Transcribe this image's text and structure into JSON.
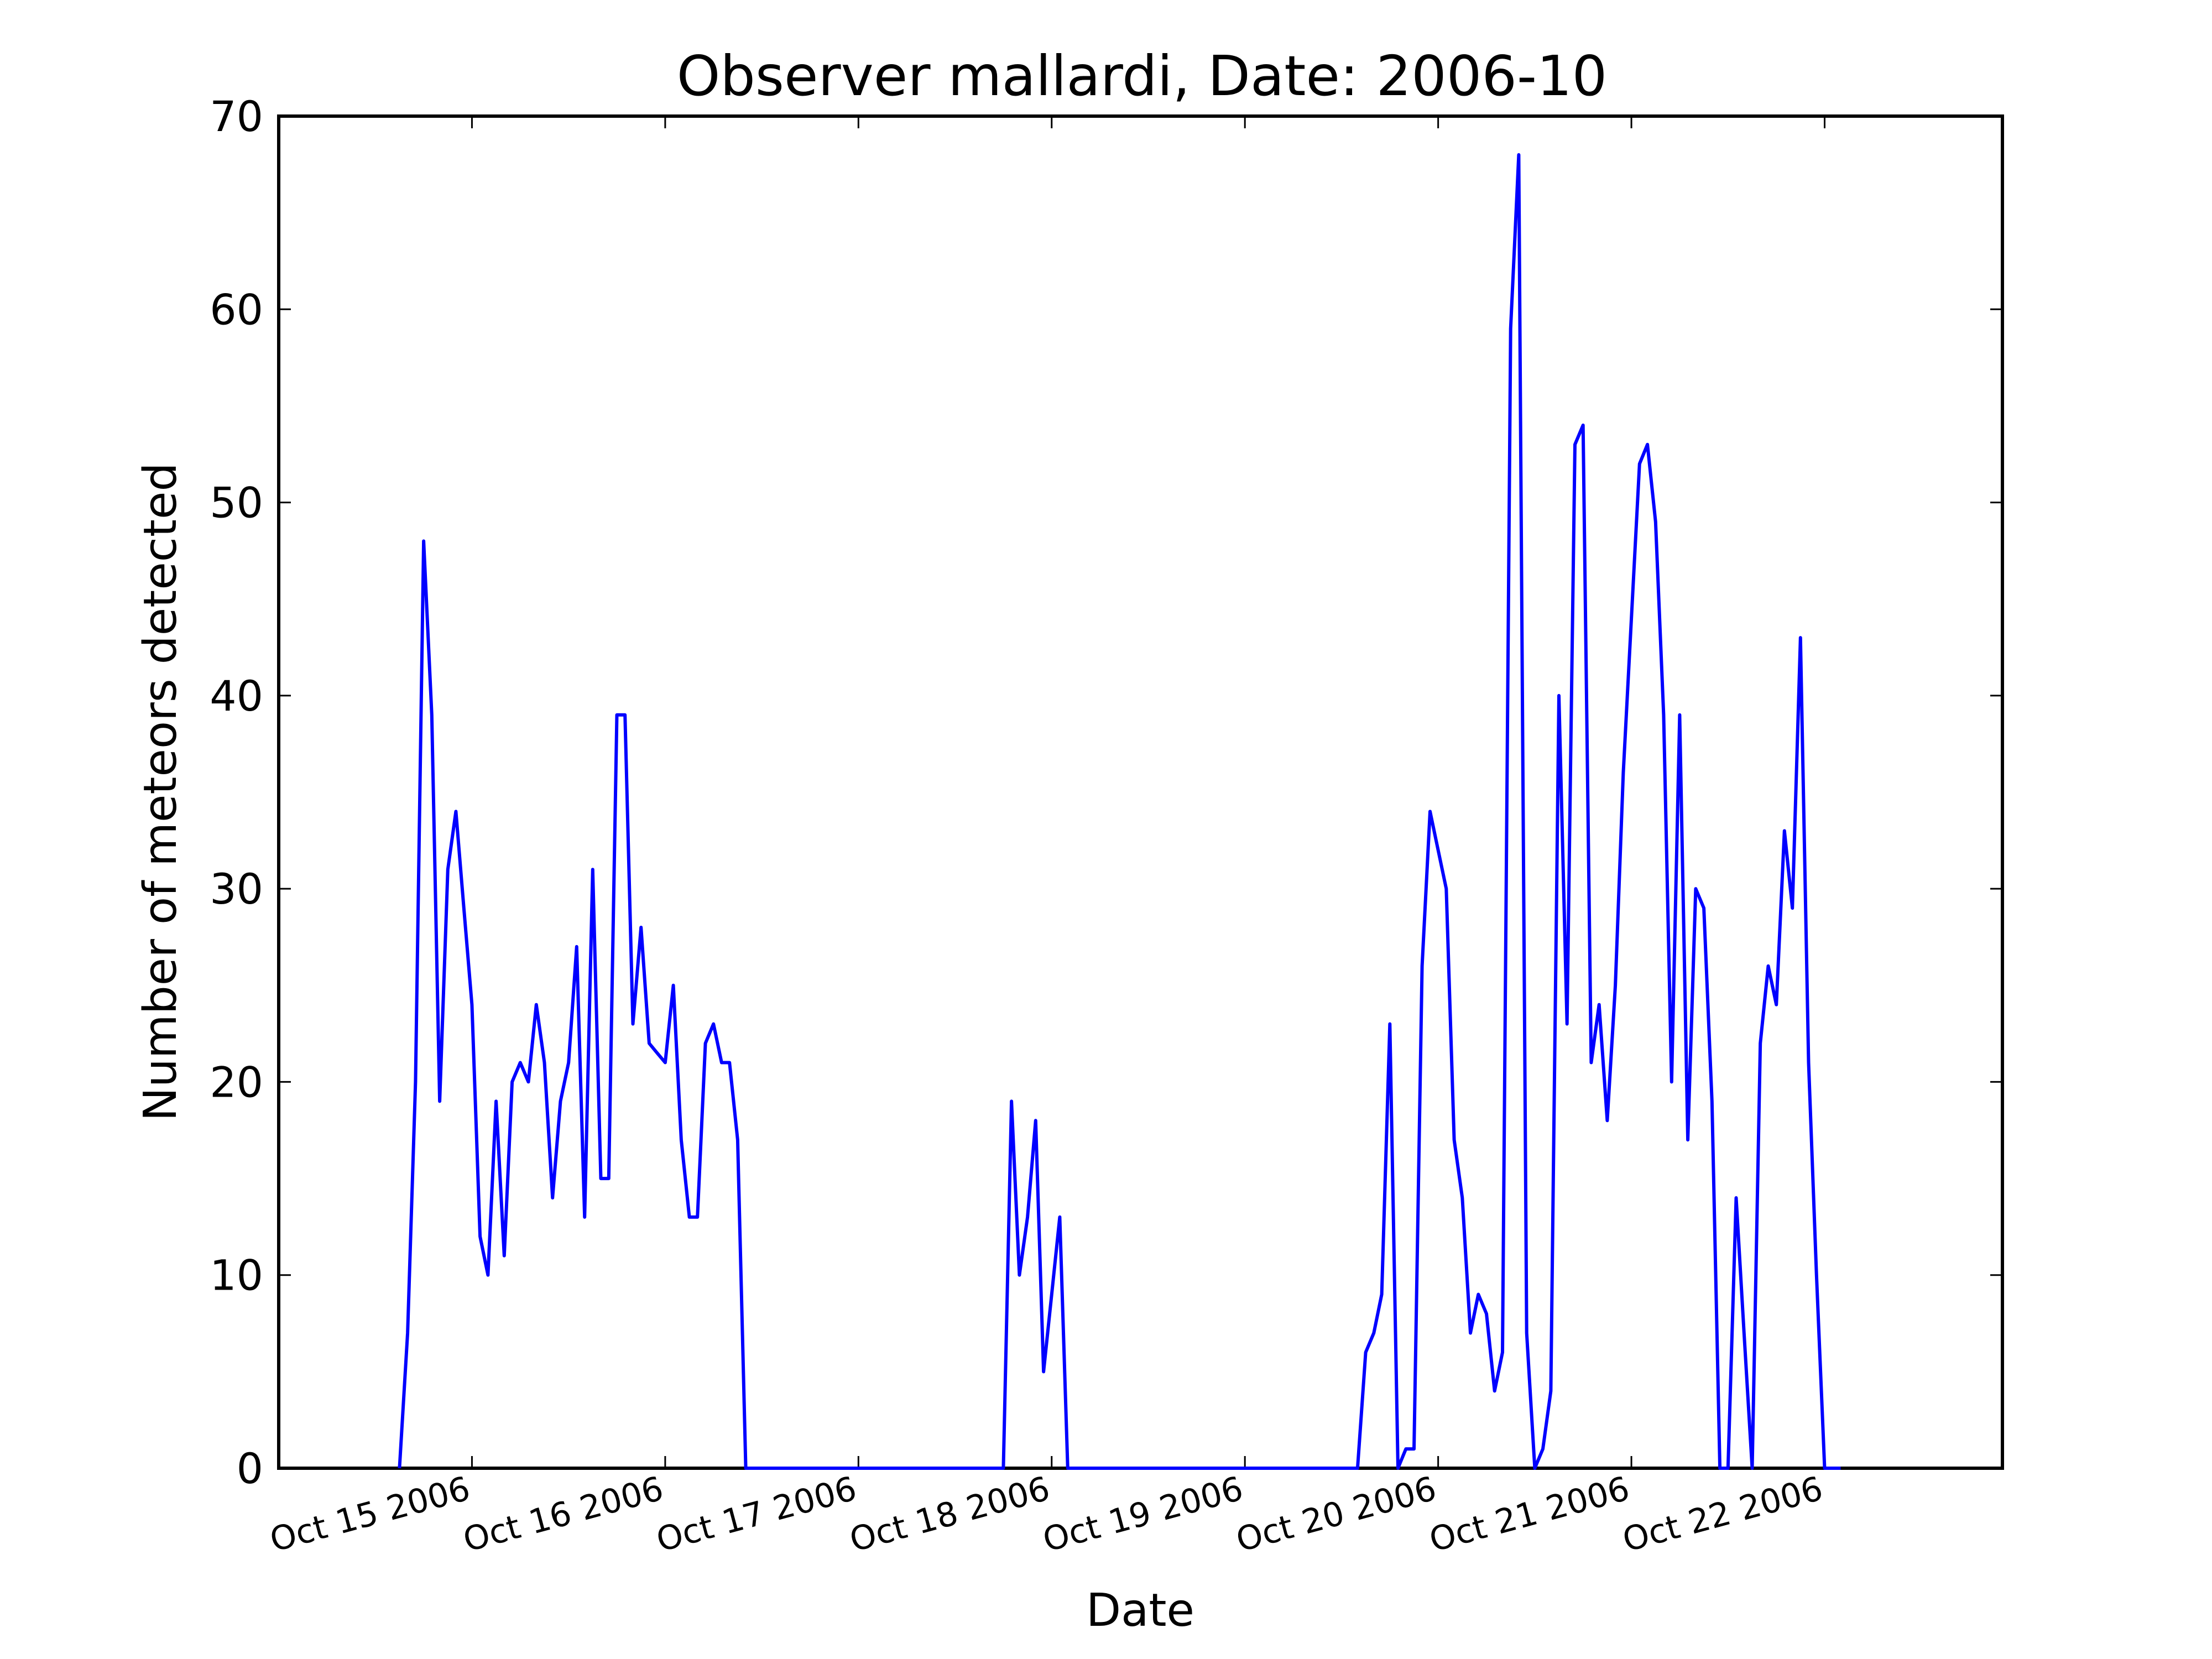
{
  "chart_data": {
    "type": "line",
    "title": "Observer mallardi, Date: 2006-10",
    "xlabel": "Date",
    "ylabel": "Number of meteors detected",
    "x_unit": "days (Oct 2006, fractional)",
    "xlim": [
      14.0,
      22.92
    ],
    "ylim": [
      0,
      70
    ],
    "yticks": [
      0,
      10,
      20,
      30,
      40,
      50,
      60,
      70
    ],
    "ytick_labels": [
      "0",
      "10",
      "20",
      "30",
      "40",
      "50",
      "60",
      "70"
    ],
    "xticks": [
      15,
      16,
      17,
      18,
      19,
      20,
      21,
      22
    ],
    "xtick_labels": [
      "Oct 15 2006",
      "Oct 16 2006",
      "Oct 17 2006",
      "Oct 18 2006",
      "Oct 19 2006",
      "Oct 20 2006",
      "Oct 21 2006",
      "Oct 22 2006"
    ],
    "grid": false,
    "colors": {
      "series": "#0000ff",
      "axes": "#000000",
      "background": "#ffffff"
    },
    "series": [
      {
        "color": "#0000ff",
        "x": [
          14.625,
          14.667,
          14.708,
          14.75,
          14.792,
          14.833,
          14.875,
          14.917,
          14.958,
          15.0,
          15.042,
          15.083,
          15.125,
          15.167,
          15.208,
          15.25,
          15.292,
          15.333,
          15.375,
          15.417,
          15.458,
          15.5,
          15.542,
          15.583,
          15.625,
          15.667,
          15.708,
          15.75,
          15.792,
          15.833,
          15.875,
          15.917,
          15.958,
          16.0,
          16.042,
          16.083,
          16.125,
          16.167,
          16.208,
          16.25,
          16.292,
          16.333,
          16.375,
          16.417,
          16.458,
          16.5,
          17.75,
          17.792,
          17.833,
          17.875,
          17.917,
          17.958,
          18.0,
          18.042,
          18.083,
          19.583,
          19.625,
          19.667,
          19.708,
          19.75,
          19.792,
          19.833,
          19.875,
          19.917,
          19.958,
          20.0,
          20.042,
          20.083,
          20.125,
          20.167,
          20.208,
          20.25,
          20.292,
          20.333,
          20.375,
          20.417,
          20.458,
          20.5,
          20.542,
          20.583,
          20.625,
          20.667,
          20.708,
          20.75,
          20.792,
          20.833,
          20.875,
          20.917,
          20.958,
          21.0,
          21.042,
          21.083,
          21.125,
          21.167,
          21.208,
          21.25,
          21.292,
          21.333,
          21.375,
          21.417,
          21.458,
          21.5,
          21.542,
          21.583,
          21.625,
          21.667,
          21.708,
          21.75,
          21.792,
          21.833,
          21.875,
          21.917,
          21.958,
          22.0,
          22.042,
          22.083
        ],
        "y": [
          0,
          7,
          20,
          48,
          39,
          19,
          31,
          34,
          29,
          24,
          12,
          10,
          19,
          11,
          20,
          21,
          20,
          24,
          21,
          14,
          19,
          21,
          27,
          13,
          31,
          15,
          15,
          39,
          39,
          23,
          28,
          22,
          21.5,
          21,
          25,
          17,
          13,
          13,
          22,
          23,
          21,
          21,
          17,
          0,
          0,
          0,
          0,
          19,
          10,
          13,
          18,
          5,
          9,
          13,
          0,
          0,
          6,
          7,
          9,
          23,
          0,
          1,
          1,
          26,
          34,
          32,
          30,
          17,
          14,
          7,
          9,
          8,
          4,
          6,
          59,
          68,
          7,
          0,
          1,
          4,
          40,
          23,
          53,
          54,
          21,
          24,
          18,
          25,
          36,
          44,
          52,
          53,
          49,
          39,
          20,
          39,
          17,
          30,
          29,
          19,
          0,
          0,
          14,
          7,
          0,
          22,
          26,
          24,
          33,
          29,
          43,
          21,
          10,
          0,
          0,
          0
        ]
      }
    ]
  }
}
